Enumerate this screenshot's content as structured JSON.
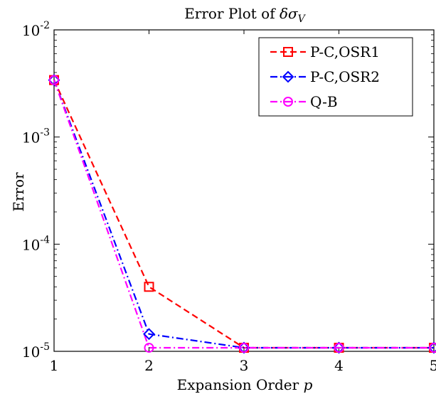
{
  "chart_data": {
    "type": "line",
    "title_prefix": "Error Plot of ",
    "title_math": "δσ",
    "title_sub": "V",
    "xlabel_prefix": "Expansion Order ",
    "xlabel_math": "p",
    "ylabel": "Error",
    "x": [
      1,
      2,
      3,
      4,
      5
    ],
    "xlim": [
      1,
      5
    ],
    "xticks": [
      "1",
      "2",
      "3",
      "4",
      "5"
    ],
    "yscale": "log",
    "ylim": [
      1e-05,
      0.01
    ],
    "yticks": [
      {
        "base": "10",
        "exp": "-5",
        "value": 1e-05
      },
      {
        "base": "10",
        "exp": "-4",
        "value": 0.0001
      },
      {
        "base": "10",
        "exp": "-3",
        "value": 0.001
      },
      {
        "base": "10",
        "exp": "-2",
        "value": 0.01
      }
    ],
    "grid": false,
    "legend_position": "top-right",
    "series": [
      {
        "name": "P-C,OSR1",
        "color": "#ff0000",
        "dash": "dashed",
        "marker": "square",
        "values": [
          0.0034,
          4e-05,
          1.08e-05,
          1.08e-05,
          1.08e-05
        ]
      },
      {
        "name": "P-C,OSR2",
        "color": "#0000ff",
        "dash": "dashdot",
        "marker": "diamond",
        "values": [
          0.0034,
          1.45e-05,
          1.08e-05,
          1.08e-05,
          1.08e-05
        ]
      },
      {
        "name": "Q-B",
        "color": "#ff00ff",
        "dash": "dashdot",
        "marker": "circle",
        "values": [
          0.0034,
          1.08e-05,
          1.08e-05,
          1.08e-05,
          1.08e-05
        ]
      }
    ]
  }
}
